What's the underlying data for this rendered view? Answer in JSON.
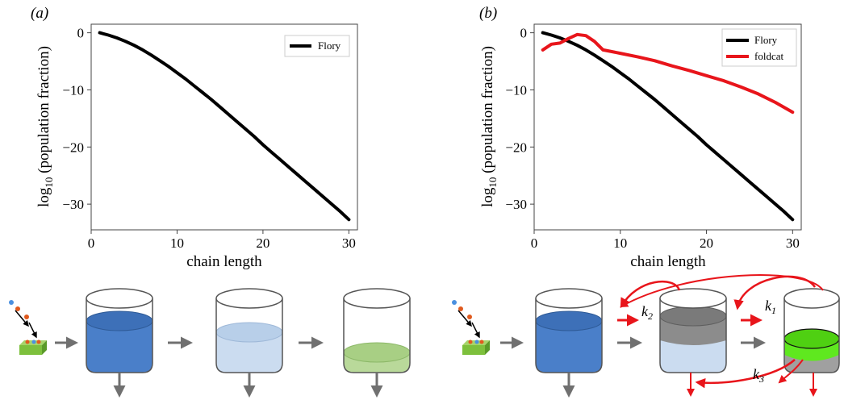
{
  "panels": [
    {
      "label": "(a)",
      "chart_data": {
        "type": "line",
        "xlabel": "chain length",
        "ylabel": "log10 (population fraction)",
        "xlim": [
          0,
          31
        ],
        "ylim": [
          -34.5,
          1.5
        ],
        "xticks": [
          0,
          10,
          20,
          30
        ],
        "yticks": [
          0,
          -10,
          -20,
          -30
        ],
        "legend_position": "top-right",
        "series": [
          {
            "name": "Flory",
            "color": "#000000",
            "x": [
              1,
              2,
              3,
              4,
              5,
              6,
              7,
              8,
              9,
              10,
              11,
              12,
              13,
              14,
              15,
              16,
              17,
              18,
              19,
              20,
              21,
              22,
              23,
              24,
              25,
              26,
              27,
              28,
              29,
              30
            ],
            "y": [
              0,
              -0.4,
              -0.9,
              -1.5,
              -2.2,
              -3.0,
              -3.9,
              -4.9,
              -5.9,
              -7.0,
              -8.1,
              -9.3,
              -10.5,
              -11.7,
              -13.0,
              -14.3,
              -15.6,
              -16.9,
              -18.2,
              -19.6,
              -20.9,
              -22.2,
              -23.5,
              -24.8,
              -26.1,
              -27.4,
              -28.7,
              -30.0,
              -31.3,
              -32.7
            ]
          }
        ]
      }
    },
    {
      "label": "(b)",
      "chart_data": {
        "type": "line",
        "xlabel": "chain length",
        "ylabel": "log10 (population fraction)",
        "xlim": [
          0,
          31
        ],
        "ylim": [
          -34.5,
          1.5
        ],
        "xticks": [
          0,
          10,
          20,
          30
        ],
        "yticks": [
          0,
          -10,
          -20,
          -30
        ],
        "legend_position": "top-right",
        "series": [
          {
            "name": "Flory",
            "color": "#000000",
            "x": [
              1,
              2,
              3,
              4,
              5,
              6,
              7,
              8,
              9,
              10,
              11,
              12,
              13,
              14,
              15,
              16,
              17,
              18,
              19,
              20,
              21,
              22,
              23,
              24,
              25,
              26,
              27,
              28,
              29,
              30
            ],
            "y": [
              0,
              -0.4,
              -0.9,
              -1.5,
              -2.2,
              -3.0,
              -3.9,
              -4.9,
              -5.9,
              -7.0,
              -8.1,
              -9.3,
              -10.5,
              -11.7,
              -13.0,
              -14.3,
              -15.6,
              -16.9,
              -18.2,
              -19.6,
              -20.9,
              -22.2,
              -23.5,
              -24.8,
              -26.1,
              -27.4,
              -28.7,
              -30.0,
              -31.3,
              -32.7
            ]
          },
          {
            "name": "foldcat",
            "color": "#e8151b",
            "x": [
              1,
              2,
              3,
              4,
              5,
              6,
              7,
              8,
              10,
              12,
              14,
              16,
              18,
              20,
              22,
              24,
              26,
              28,
              30
            ],
            "y": [
              -3.0,
              -2.0,
              -1.8,
              -1.0,
              -0.3,
              -0.5,
              -1.5,
              -3.0,
              -3.6,
              -4.2,
              -4.9,
              -5.8,
              -6.6,
              -7.5,
              -8.4,
              -9.5,
              -10.7,
              -12.2,
              -13.9
            ]
          }
        ]
      }
    }
  ],
  "diagram": {
    "rate_labels": [
      "k2",
      "k1",
      "k3"
    ],
    "colors": {
      "dark_blue": "#4a7fc9",
      "light_blue": "#cbdcf0",
      "light_green": "#b9d99a",
      "bright_green": "#5fe81f",
      "gray": "#8c8c8c",
      "arrow_gray": "#707070",
      "arrow_red": "#e8151b",
      "surface_green": "#7dc03c"
    }
  }
}
